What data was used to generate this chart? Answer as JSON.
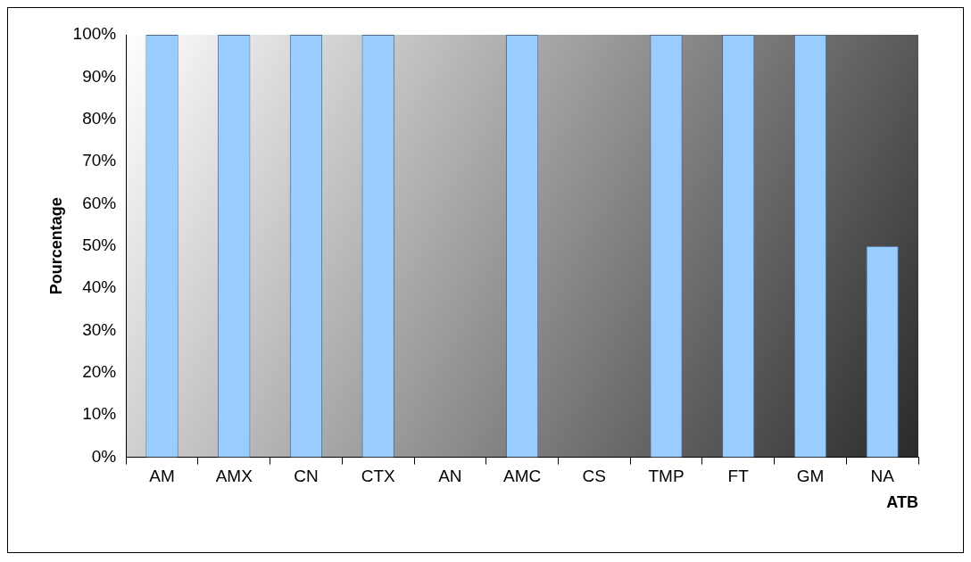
{
  "chart_data": {
    "type": "bar",
    "xlabel": "ATB",
    "ylabel": "Pourcentage",
    "categories": [
      "AM",
      "AMX",
      "CN",
      "CTX",
      "AN",
      "AMC",
      "CS",
      "TMP",
      "FT",
      "GM",
      "NA"
    ],
    "values": [
      100,
      100,
      100,
      100,
      0,
      100,
      0,
      100,
      100,
      100,
      50
    ],
    "color": "#99ccff",
    "ylim": [
      0,
      100
    ],
    "yticks": [
      {
        "value": 0,
        "label": "0%"
      },
      {
        "value": 10,
        "label": "10%"
      },
      {
        "value": 20,
        "label": "20%"
      },
      {
        "value": 30,
        "label": "30%"
      },
      {
        "value": 40,
        "label": "40%"
      },
      {
        "value": 50,
        "label": "50%"
      },
      {
        "value": 60,
        "label": "60%"
      },
      {
        "value": 70,
        "label": "70%"
      },
      {
        "value": 80,
        "label": "80%"
      },
      {
        "value": 90,
        "label": "90%"
      },
      {
        "value": 100,
        "label": "100%"
      }
    ],
    "grid": false,
    "legend": false
  }
}
